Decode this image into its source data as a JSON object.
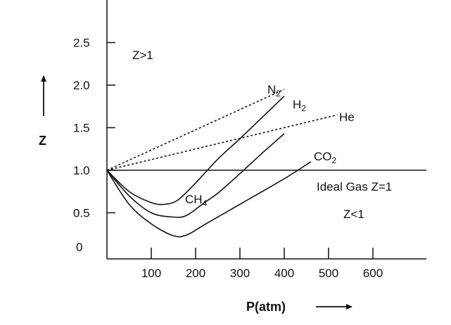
{
  "chart_data": {
    "type": "line",
    "xlabel": "P(atm)",
    "ylabel": "Z",
    "x_ticks": [
      100,
      200,
      300,
      400,
      500,
      600
    ],
    "y_ticks": [
      "0",
      "0.5",
      "1.0",
      "1.5",
      "2.0",
      "2.5"
    ],
    "y_tick_values": [
      0,
      0.5,
      1.0,
      1.5,
      2.0,
      2.5
    ],
    "xlim": [
      0,
      700
    ],
    "ylim": [
      -0.2,
      3.0
    ],
    "grid": false,
    "ideal_line": {
      "label": "Ideal Gas Z=1",
      "value": 1.0
    },
    "region_labels": [
      {
        "text": "Z>1"
      },
      {
        "text": "Z<1"
      }
    ],
    "series": [
      {
        "name": "N",
        "subscript": "2",
        "style": "dotted",
        "x": [
          0,
          400
        ],
        "y": [
          1.0,
          1.95
        ]
      },
      {
        "name": "He",
        "subscript": "",
        "style": "dotted",
        "x": [
          0,
          520
        ],
        "y": [
          1.0,
          1.65
        ]
      },
      {
        "name": "H",
        "subscript": "2",
        "style": "solid",
        "x": [
          0,
          50,
          100,
          130,
          160,
          200,
          250,
          300,
          350,
          400
        ],
        "y": [
          1.0,
          0.75,
          0.62,
          0.6,
          0.65,
          0.85,
          1.13,
          1.37,
          1.62,
          1.87
        ]
      },
      {
        "name": "CH",
        "subscript": "4",
        "style": "solid",
        "x": [
          0,
          50,
          100,
          150,
          180,
          220,
          250,
          300,
          350,
          400
        ],
        "y": [
          1.0,
          0.7,
          0.5,
          0.45,
          0.47,
          0.62,
          0.73,
          0.96,
          1.2,
          1.43
        ]
      },
      {
        "name": "CO",
        "subscript": "2",
        "style": "solid",
        "x": [
          0,
          50,
          100,
          150,
          180,
          220,
          300,
          400,
          460
        ],
        "y": [
          1.0,
          0.6,
          0.37,
          0.23,
          0.24,
          0.36,
          0.6,
          0.9,
          1.1
        ]
      }
    ]
  }
}
